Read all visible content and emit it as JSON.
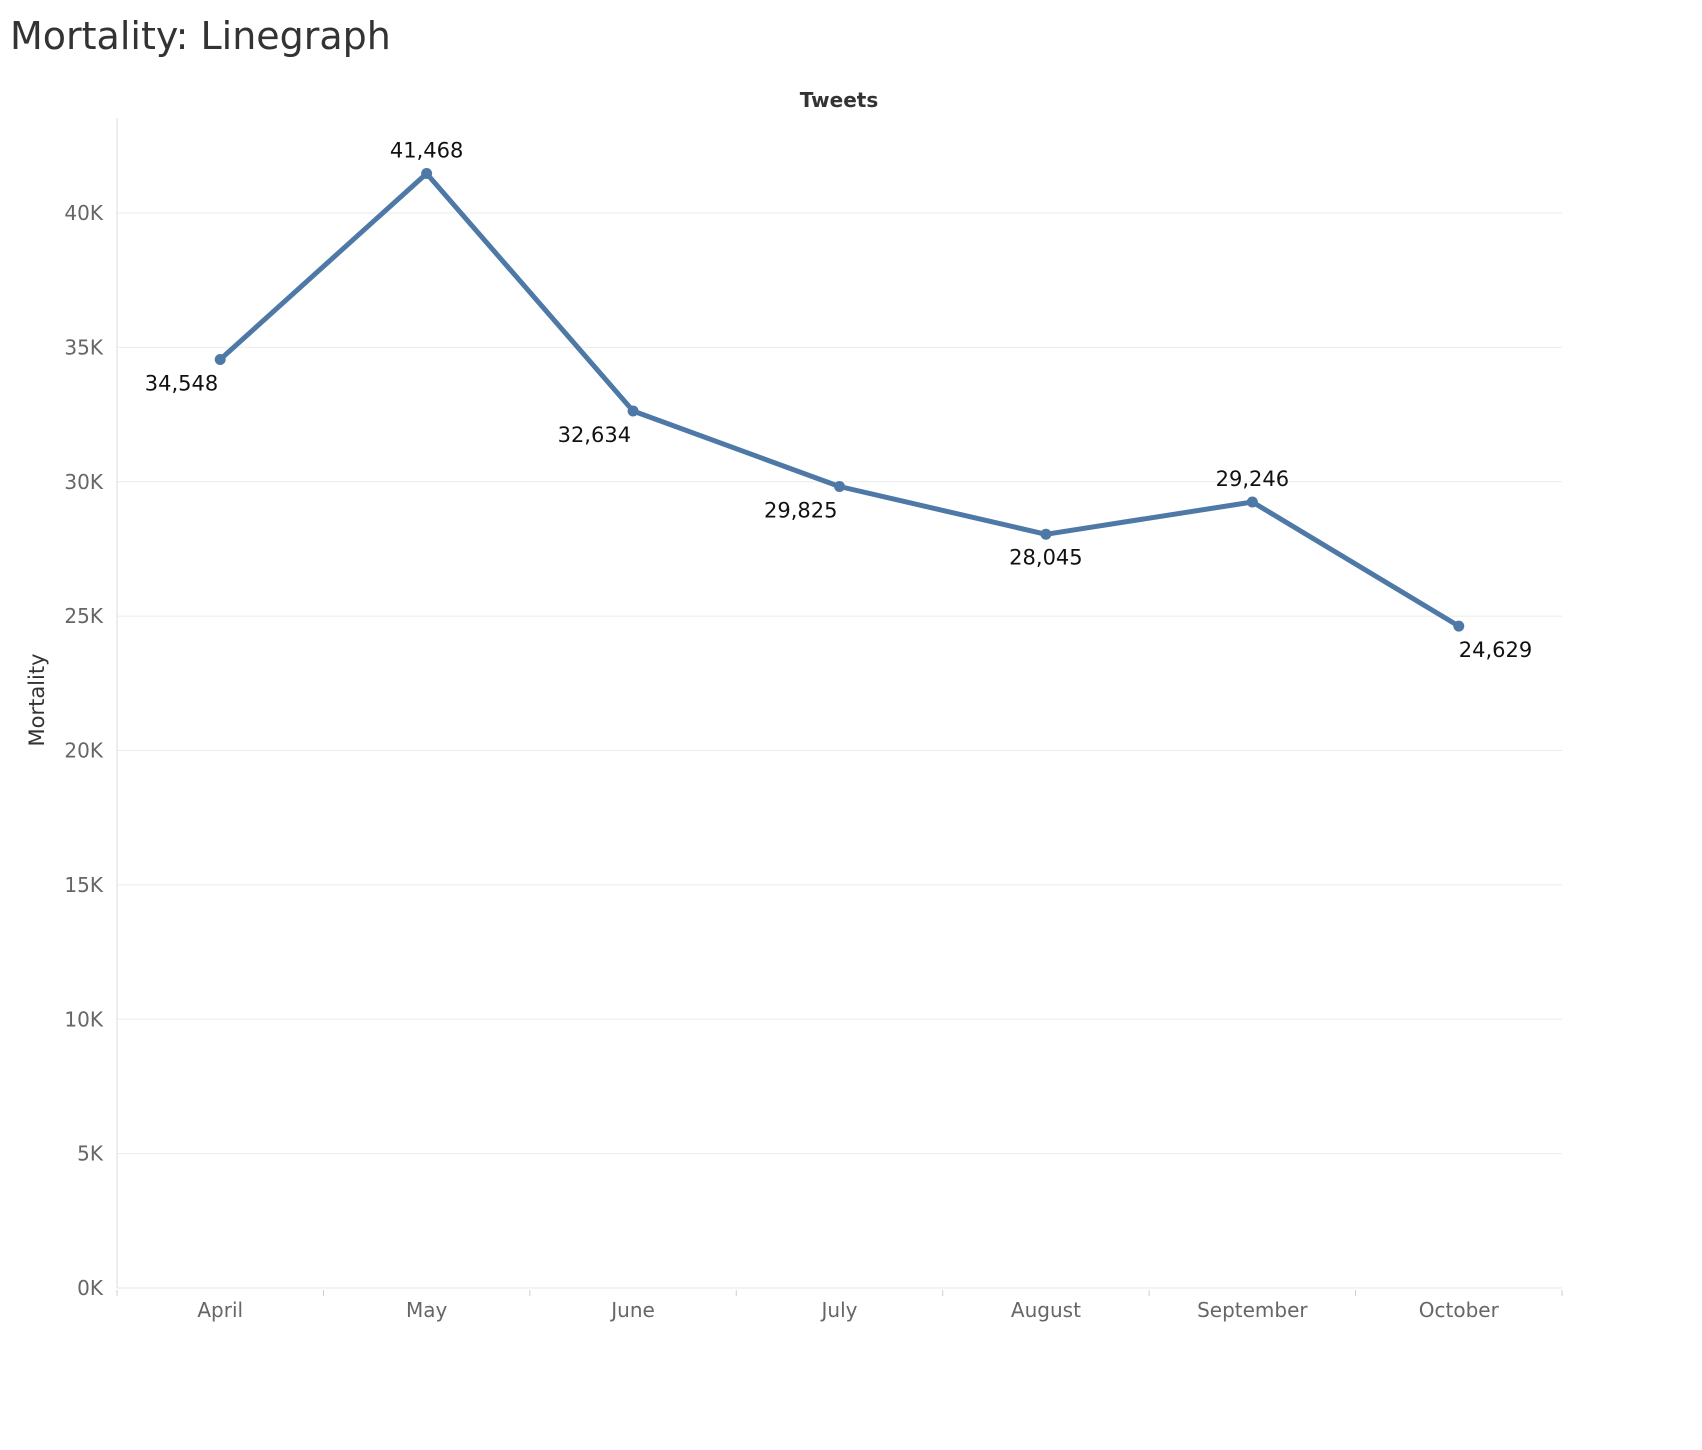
{
  "title": "Mortality: Linegraph",
  "colors": {
    "line": "#4e79a7",
    "grid": "#ebebeb",
    "tick_text": "#666666"
  },
  "chart_data": {
    "type": "line",
    "subtitle": "Tweets",
    "xlabel": "",
    "ylabel": "Mortality",
    "categories": [
      "April",
      "May",
      "June",
      "July",
      "August",
      "September",
      "October"
    ],
    "series": [
      {
        "values": [
          34548,
          41468,
          32634,
          29825,
          28045,
          29246,
          24629
        ],
        "data_labels": [
          "34,548",
          "41,468",
          "32,634",
          "29,825",
          "28,045",
          "29,246",
          "24,629"
        ],
        "label_positions": [
          "below-left",
          "above",
          "below-left",
          "below-left",
          "below",
          "above",
          "below-right"
        ]
      }
    ],
    "ylim": [
      0,
      42500
    ],
    "yticks": [
      0,
      5000,
      10000,
      15000,
      20000,
      25000,
      30000,
      35000,
      40000
    ],
    "ytick_labels": [
      "0K",
      "5K",
      "10K",
      "15K",
      "20K",
      "25K",
      "30K",
      "35K",
      "40K"
    ],
    "grid": true,
    "legend": "none"
  }
}
